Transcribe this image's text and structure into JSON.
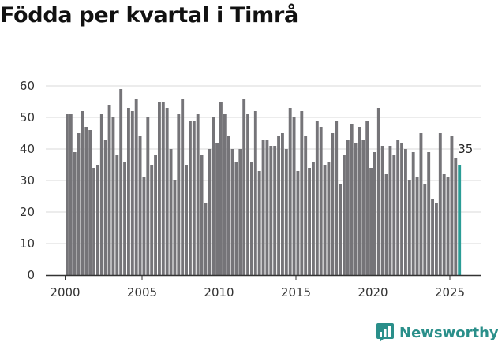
{
  "title": "Födda per kvartal i Timrå",
  "brand": {
    "name": "Newsworthy",
    "icon": "bar-chart-icon"
  },
  "colors": {
    "bar": "#757478",
    "highlight": "#2a9d96",
    "grid": "#d9d9d9",
    "axis": "#333333"
  },
  "chart_data": {
    "type": "bar",
    "title": "Födda per kvartal i Timrå",
    "xlabel": "",
    "ylabel": "",
    "ylim": [
      0,
      60
    ],
    "yticks": [
      "0",
      "10",
      "20",
      "30",
      "40",
      "50",
      "60"
    ],
    "xticks": [
      "2000",
      "2005",
      "2010",
      "2015",
      "2020",
      "2025"
    ],
    "first_period": "2000 Q1",
    "values": [
      51,
      51,
      39,
      45,
      52,
      47,
      46,
      34,
      35,
      51,
      43,
      54,
      50,
      38,
      59,
      36,
      53,
      52,
      56,
      44,
      31,
      50,
      35,
      38,
      55,
      55,
      53,
      40,
      30,
      51,
      56,
      35,
      49,
      49,
      51,
      38,
      23,
      40,
      50,
      42,
      55,
      51,
      44,
      40,
      36,
      40,
      56,
      51,
      36,
      52,
      33,
      43,
      43,
      41,
      41,
      44,
      45,
      40,
      53,
      50,
      33,
      52,
      44,
      34,
      36,
      49,
      47,
      35,
      36,
      45,
      49,
      29,
      38,
      43,
      48,
      42,
      47,
      43,
      49,
      34,
      39,
      53,
      41,
      32,
      41,
      38,
      43,
      42,
      40,
      30,
      39,
      31,
      45,
      29,
      39,
      24,
      23,
      45,
      32,
      31,
      44,
      37,
      35
    ],
    "last_label": "35"
  }
}
